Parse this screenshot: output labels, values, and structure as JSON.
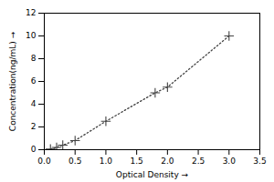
{
  "chart_data": {
    "type": "line",
    "x": [
      0.1,
      0.2,
      0.3,
      0.5,
      1.0,
      1.8,
      2.0,
      3.0
    ],
    "values": [
      0.05,
      0.2,
      0.4,
      0.8,
      2.5,
      5.0,
      5.5,
      10.0
    ],
    "xlabel": "Optical Density",
    "ylabel": "Concentration(ng/mL)",
    "xlim": [
      0,
      3.5
    ],
    "ylim": [
      0,
      12
    ],
    "xticks": [
      {
        "value": 0,
        "label": "0.0"
      },
      0.5,
      {
        "value": 1.0,
        "label": "1.0"
      },
      1.5,
      {
        "value": 2.0,
        "label": "2.0"
      },
      2.5,
      {
        "value": 3.0,
        "label": "3.0"
      },
      3.5
    ],
    "yticks": [
      0,
      2,
      4,
      6,
      8,
      10,
      12
    ],
    "color": "#444444",
    "marker": "+",
    "line_style": "dotted",
    "grid": false
  }
}
